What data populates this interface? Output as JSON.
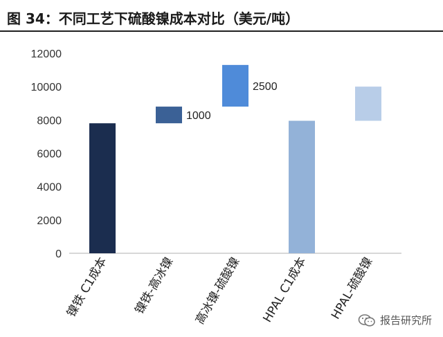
{
  "figure": {
    "title": "图 34：不同工艺下硫酸镍成本对比（美元/吨）"
  },
  "watermark": {
    "text": "报告研究所",
    "icon": "wechat-icon"
  },
  "chart_data": {
    "type": "bar",
    "subtype": "waterfall",
    "title": "图 34：不同工艺下硫酸镍成本对比（美元/吨）",
    "xlabel": "",
    "ylabel": "",
    "ylim": [
      0,
      12000
    ],
    "yticks": [
      0,
      2000,
      4000,
      6000,
      8000,
      10000,
      12000
    ],
    "grid": false,
    "legend": "none",
    "categories": [
      "镍铁 C1成本",
      "镍铁-高冰镍",
      "高冰镍-硫酸镍",
      "HPAL C1成本",
      "HPAL-硫酸镍"
    ],
    "bars": [
      {
        "category": "镍铁 C1成本",
        "base": 0,
        "value": 7800,
        "label": "",
        "color": "#1b2d4f"
      },
      {
        "category": "镍铁-高冰镍",
        "base": 7800,
        "value": 1000,
        "label": "1000",
        "color": "#3b6196"
      },
      {
        "category": "高冰镍-硫酸镍",
        "base": 8800,
        "value": 2500,
        "label": "2500",
        "color": "#4f8bd9"
      },
      {
        "category": "HPAL C1成本",
        "base": 0,
        "value": 7950,
        "label": "",
        "color": "#93b2d8"
      },
      {
        "category": "HPAL-硫酸镍",
        "base": 7950,
        "value": 2050,
        "label": "",
        "color": "#b8cde8"
      }
    ]
  }
}
